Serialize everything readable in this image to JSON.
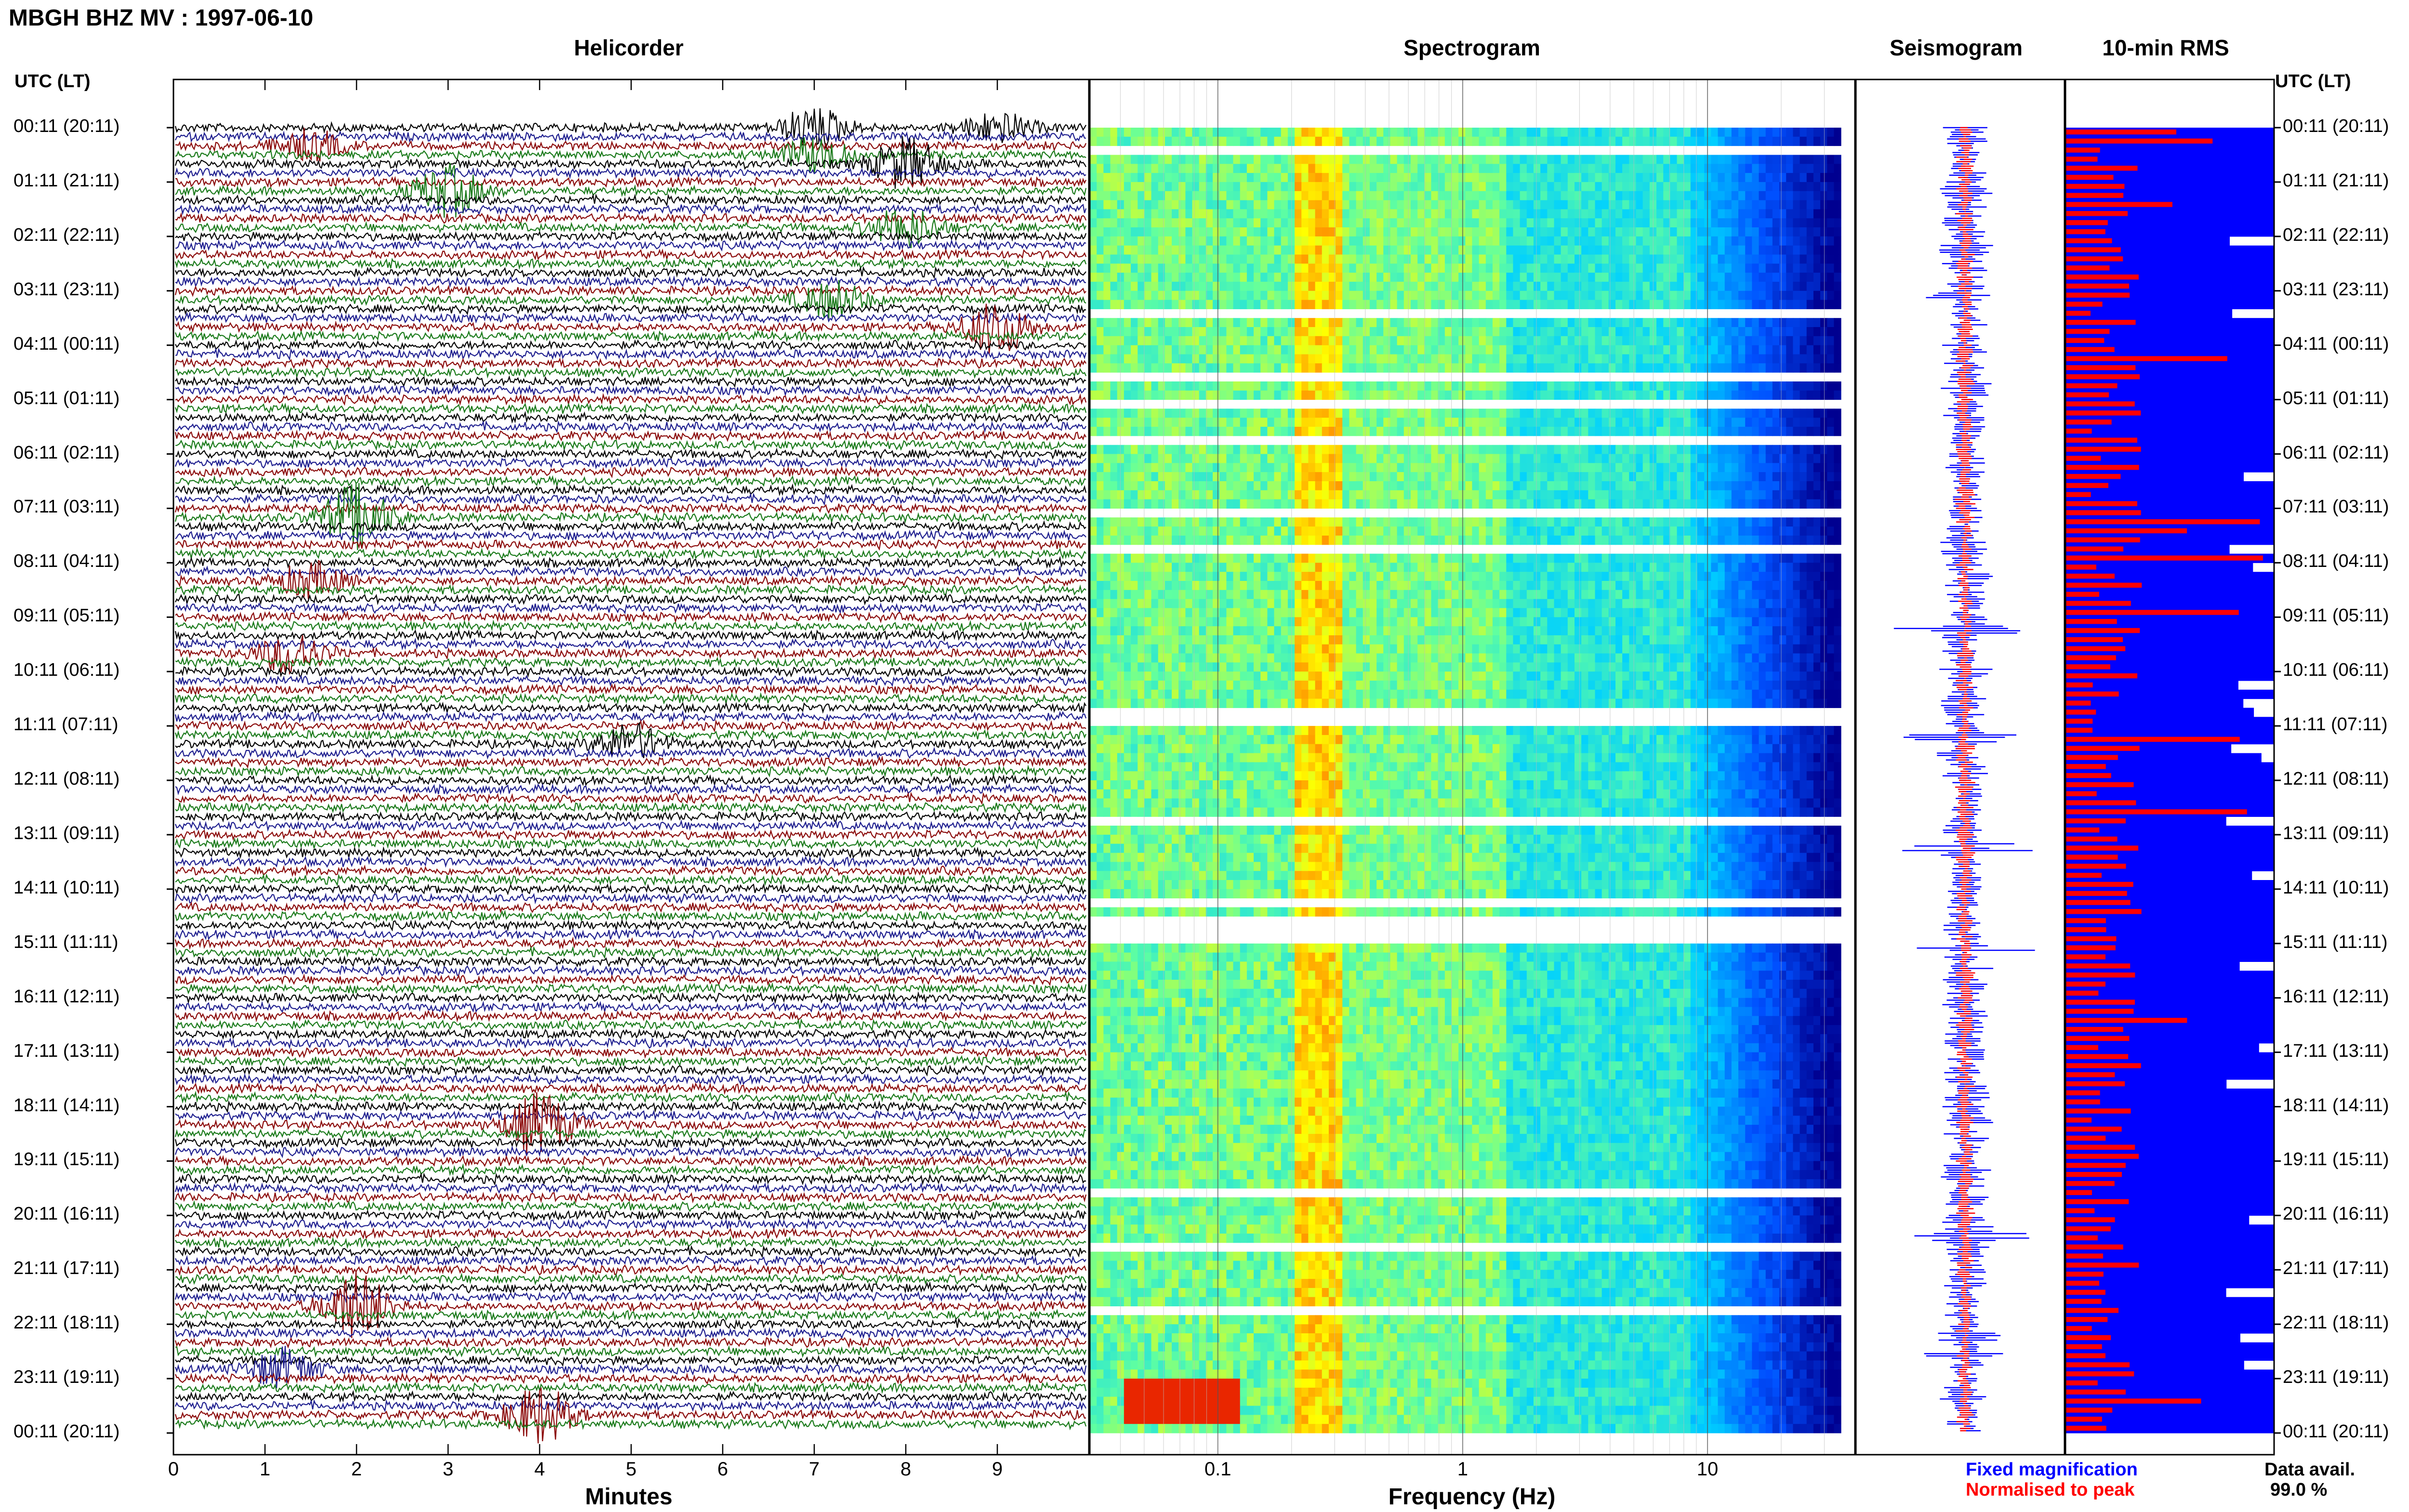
{
  "header": {
    "title": "MBGH BHZ MV : 1997-06-10"
  },
  "panels": {
    "helicorder": "Helicorder",
    "spectrogram": "Spectrogram",
    "seismogram": "Seismogram",
    "rms": "10-min RMS"
  },
  "time_axis_label": "UTC (LT)",
  "colors": {
    "trace_cycle": [
      "#000000",
      "#1f1f8f",
      "#8b0a0a",
      "#1a7a1a"
    ],
    "seismogram_fixed": "#0000ff",
    "seismogram_normalised": "#ff0000",
    "rms_bar": "#ff0000",
    "availability_fill": "#0000ff"
  },
  "chart_data": [
    {
      "type": "line",
      "name": "helicorder",
      "title": "Helicorder",
      "xlabel": "Minutes",
      "x_ticks": [
        "0",
        "1",
        "2",
        "3",
        "4",
        "5",
        "6",
        "7",
        "8",
        "9"
      ],
      "xlim": [
        0,
        10
      ],
      "time_labels": [
        "00:11 (20:11)",
        "01:11 (21:11)",
        "02:11 (22:11)",
        "03:11 (23:11)",
        "04:11 (00:11)",
        "05:11 (01:11)",
        "06:11 (02:11)",
        "07:11 (03:11)",
        "08:11 (04:11)",
        "09:11 (05:11)",
        "10:11 (06:11)",
        "11:11 (07:11)",
        "12:11 (08:11)",
        "13:11 (09:11)",
        "14:11 (10:11)",
        "15:11 (11:11)",
        "16:11 (12:11)",
        "17:11 (13:11)",
        "18:11 (14:11)",
        "19:11 (15:11)",
        "20:11 (16:11)",
        "21:11 (17:11)",
        "22:11 (18:11)",
        "23:11 (19:11)",
        "00:11 (20:11)"
      ],
      "rows_per_hour": 6,
      "events": [
        {
          "row": 0,
          "minute": 7.0,
          "amp": 1.4
        },
        {
          "row": 0,
          "minute": 9.0,
          "amp": 1.0
        },
        {
          "row": 2,
          "minute": 1.5,
          "amp": 1.0
        },
        {
          "row": 3,
          "minute": 7.0,
          "amp": 1.2
        },
        {
          "row": 4,
          "minute": 8.0,
          "amp": 1.8
        },
        {
          "row": 7,
          "minute": 3.0,
          "amp": 1.8
        },
        {
          "row": 11,
          "minute": 8.0,
          "amp": 1.4
        },
        {
          "row": 19,
          "minute": 7.2,
          "amp": 1.3
        },
        {
          "row": 22,
          "minute": 9.0,
          "amp": 1.9
        },
        {
          "row": 43,
          "minute": 2.0,
          "amp": 2.3
        },
        {
          "row": 50,
          "minute": 1.5,
          "amp": 1.2
        },
        {
          "row": 58,
          "minute": 1.3,
          "amp": 1.5
        },
        {
          "row": 68,
          "minute": 5.0,
          "amp": 1.3
        },
        {
          "row": 110,
          "minute": 4.0,
          "amp": 2.2
        },
        {
          "row": 130,
          "minute": 2.0,
          "amp": 2.4
        },
        {
          "row": 137,
          "minute": 1.2,
          "amp": 1.4
        },
        {
          "row": 142,
          "minute": 4.0,
          "amp": 2.0
        }
      ]
    },
    {
      "type": "heatmap",
      "name": "spectrogram",
      "title": "Spectrogram",
      "xlabel": "Frequency (Hz)",
      "x_scale": "log",
      "x_ticks": [
        "0.1",
        "1",
        "10"
      ],
      "xlim": [
        0.03,
        40
      ],
      "colormap": [
        "#000090",
        "#0050ff",
        "#00d0ff",
        "#60ffa0",
        "#ffff00",
        "#ff8000",
        "#e00000"
      ],
      "notes_peak_band_hz": [
        0.2,
        0.3
      ],
      "event_row_strong": 140
    },
    {
      "type": "line",
      "name": "seismogram",
      "title": "Seismogram",
      "legend": [
        "Fixed magnification",
        "Normalised to peak"
      ]
    },
    {
      "type": "bar",
      "name": "rms",
      "title": "10-min RMS",
      "data_availability_label": "Data avail.",
      "data_availability_value": "99.0 %"
    }
  ]
}
